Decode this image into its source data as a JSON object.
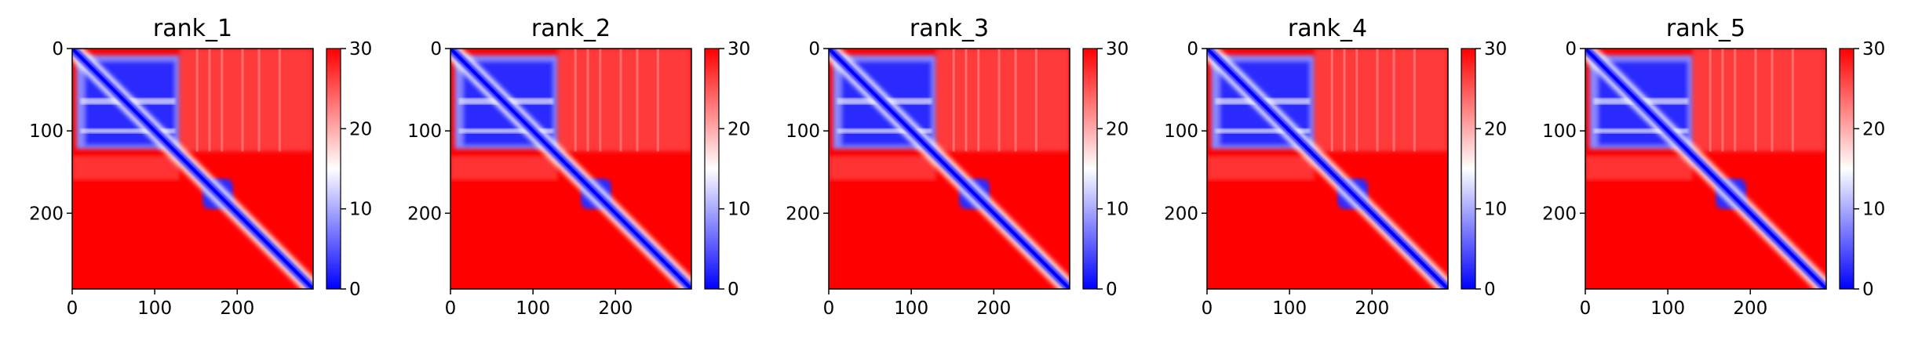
{
  "chart_data": [
    {
      "type": "heatmap",
      "title": "rank_1",
      "size": 292,
      "xticks": [
        "0",
        "100",
        "200"
      ],
      "yticks": [
        "0",
        "100",
        "200"
      ],
      "colorbar": {
        "ticks": [
          "0",
          "10",
          "20",
          "30"
        ],
        "range": [
          0,
          30
        ],
        "colors": [
          "#0000ff",
          "#ffffff",
          "#ff0000"
        ]
      }
    },
    {
      "type": "heatmap",
      "title": "rank_2",
      "size": 292,
      "xticks": [
        "0",
        "100",
        "200"
      ],
      "yticks": [
        "0",
        "100",
        "200"
      ],
      "colorbar": {
        "ticks": [
          "0",
          "10",
          "20",
          "30"
        ],
        "range": [
          0,
          30
        ],
        "colors": [
          "#0000ff",
          "#ffffff",
          "#ff0000"
        ]
      }
    },
    {
      "type": "heatmap",
      "title": "rank_3",
      "size": 292,
      "xticks": [
        "0",
        "100",
        "200"
      ],
      "yticks": [
        "0",
        "100",
        "200"
      ],
      "colorbar": {
        "ticks": [
          "0",
          "10",
          "20",
          "30"
        ],
        "range": [
          0,
          30
        ],
        "colors": [
          "#0000ff",
          "#ffffff",
          "#ff0000"
        ]
      }
    },
    {
      "type": "heatmap",
      "title": "rank_4",
      "size": 292,
      "xticks": [
        "0",
        "100",
        "200"
      ],
      "yticks": [
        "0",
        "100",
        "200"
      ],
      "colorbar": {
        "ticks": [
          "0",
          "10",
          "20",
          "30"
        ],
        "range": [
          0,
          30
        ],
        "colors": [
          "#0000ff",
          "#ffffff",
          "#ff0000"
        ]
      }
    },
    {
      "type": "heatmap",
      "title": "rank_5",
      "size": 292,
      "xticks": [
        "0",
        "100",
        "200"
      ],
      "yticks": [
        "0",
        "100",
        "200"
      ],
      "colorbar": {
        "ticks": [
          "0",
          "10",
          "20",
          "30"
        ],
        "range": [
          0,
          30
        ],
        "colors": [
          "#0000ff",
          "#ffffff",
          "#ff0000"
        ]
      }
    }
  ]
}
